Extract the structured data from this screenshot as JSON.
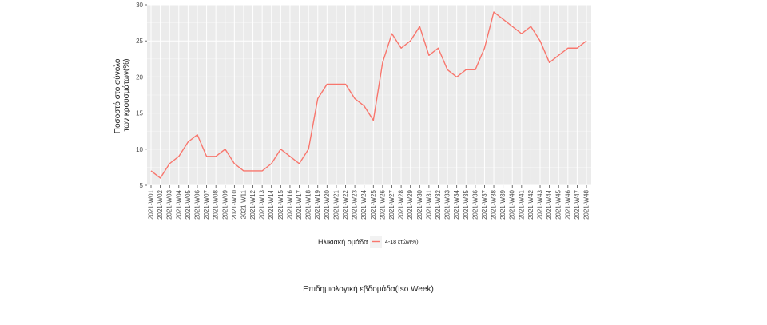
{
  "chart_data": {
    "type": "line",
    "xlabel": "Επιδημιολογική εβδομάδα(Iso Week)",
    "ylabel": "Ποσοστό στο σύνολο των κρουσμάτων(%)",
    "ylabel_lines": [
      "Ποσοστό στο σύνολο",
      "των κρουσμάτων(%)"
    ],
    "ylim": [
      5,
      30
    ],
    "yticks": [
      5,
      10,
      15,
      20,
      25,
      30
    ],
    "grid": true,
    "legend_placement": "bottom",
    "legend_title": "Ηλικιακή ομάδα",
    "x": [
      "2021-W01",
      "2021-W02",
      "2021-W03",
      "2021-W04",
      "2021-W05",
      "2021-W06",
      "2021-W07",
      "2021-W08",
      "2021-W09",
      "2021-W10",
      "2021-W11",
      "2021-W12",
      "2021-W13",
      "2021-W14",
      "2021-W15",
      "2021-W16",
      "2021-W17",
      "2021-W18",
      "2021-W19",
      "2021-W20",
      "2021-W21",
      "2021-W22",
      "2021-W23",
      "2021-W24",
      "2021-W25",
      "2021-W26",
      "2021-W27",
      "2021-W28",
      "2021-W29",
      "2021-W30",
      "2021-W31",
      "2021-W32",
      "2021-W33",
      "2021-W34",
      "2021-W35",
      "2021-W36",
      "2021-W37",
      "2021-W38",
      "2021-W39",
      "2021-W40",
      "2021-W41",
      "2021-W42",
      "2021-W43",
      "2021-W44",
      "2021-W45",
      "2021-W46",
      "2021-W47",
      "2021-W48"
    ],
    "series": [
      {
        "name": "4-18 ετών(%)",
        "color": "#f8766d",
        "values": [
          7,
          6,
          8,
          9,
          11,
          12,
          9,
          9,
          10,
          8,
          7,
          7,
          7,
          8,
          10,
          9,
          8,
          10,
          17,
          19,
          19,
          19,
          17,
          16,
          14,
          22,
          26,
          24,
          25,
          27,
          23,
          24,
          21,
          20,
          21,
          21,
          24,
          29,
          28,
          27,
          26,
          27,
          25,
          22,
          23,
          24,
          24,
          25
        ]
      }
    ]
  }
}
